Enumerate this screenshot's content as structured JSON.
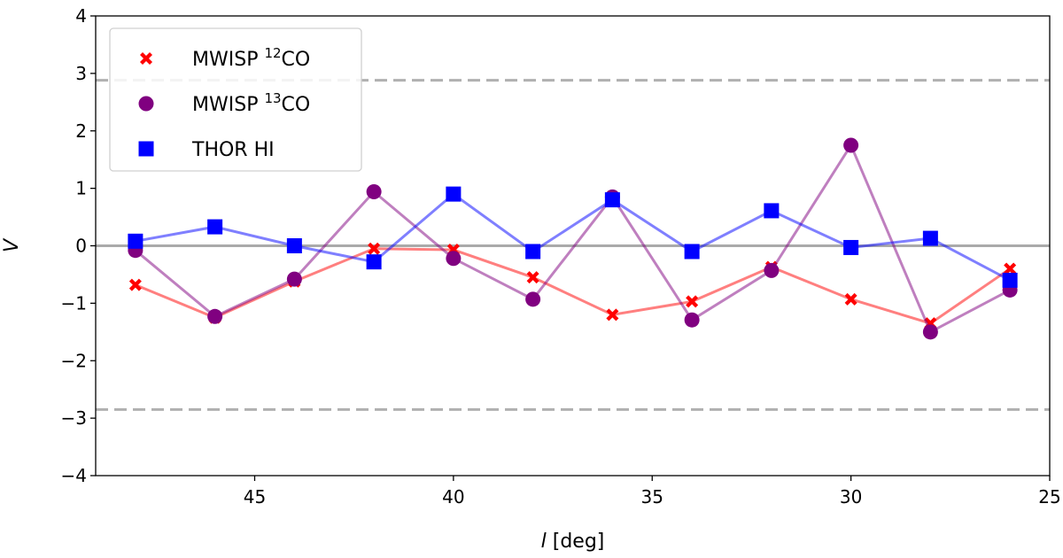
{
  "chart_data": {
    "type": "line",
    "xlabel_italic": "l",
    "xlabel_rest": " [deg]",
    "ylabel": "V",
    "xlim": [
      49,
      25
    ],
    "ylim": [
      -4,
      4
    ],
    "xticks": [
      45,
      40,
      35,
      30,
      25
    ],
    "yticks": [
      -4,
      -3,
      -2,
      -1,
      0,
      1,
      2,
      3,
      4
    ],
    "x": [
      48,
      46,
      44,
      42,
      40,
      38,
      36,
      34,
      32,
      30,
      28,
      26
    ],
    "reference_lines": [
      {
        "y": 0,
        "style": "solid",
        "color": "#aaaaaa"
      },
      {
        "y": 2.88,
        "style": "dashed",
        "color": "#b0b0b0"
      },
      {
        "y": -2.85,
        "style": "dashed",
        "color": "#b0b0b0"
      }
    ],
    "legend_position": "top-left",
    "series": [
      {
        "name_prefix": "MWISP ",
        "name_sup": "12",
        "name_suffix": "CO",
        "marker": "x",
        "color": "#ff0000",
        "values": [
          -0.68,
          -1.25,
          -0.62,
          -0.05,
          -0.07,
          -0.55,
          -1.2,
          -0.97,
          -0.37,
          -0.93,
          -1.35,
          -0.4
        ]
      },
      {
        "name_prefix": "MWISP ",
        "name_sup": "13",
        "name_suffix": "CO",
        "marker": "circle",
        "color": "#800080",
        "values": [
          -0.08,
          -1.23,
          -0.58,
          0.94,
          -0.22,
          -0.93,
          0.85,
          -1.29,
          -0.43,
          1.75,
          -1.5,
          -0.77
        ]
      },
      {
        "name_prefix": "THOR HI",
        "name_sup": "",
        "name_suffix": "",
        "marker": "square",
        "color": "#0000ff",
        "values": [
          0.08,
          0.33,
          0.0,
          -0.28,
          0.9,
          -0.1,
          0.8,
          -0.1,
          0.61,
          -0.03,
          0.13,
          -0.6
        ]
      }
    ]
  }
}
